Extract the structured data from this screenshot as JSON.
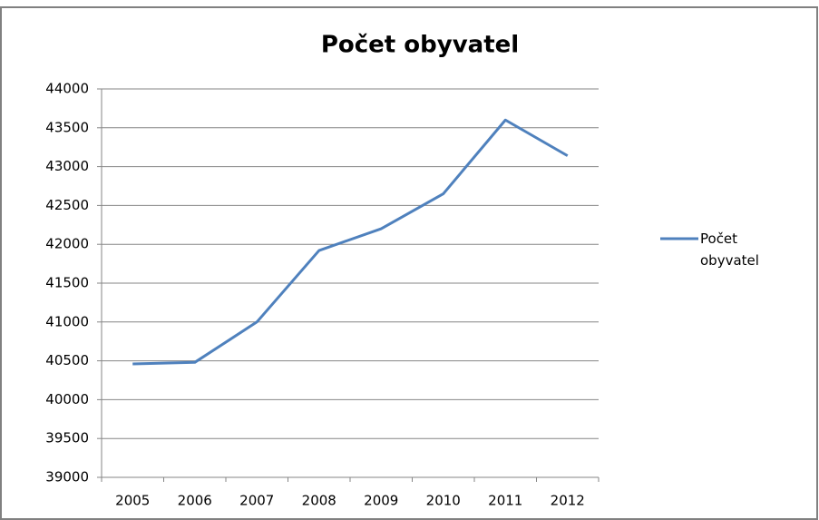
{
  "chart_data": {
    "type": "line",
    "title": "Počet obyvatel",
    "categories": [
      "2005",
      "2006",
      "2007",
      "2008",
      "2009",
      "2010",
      "2011",
      "2012"
    ],
    "series": [
      {
        "name": "Počet obyvatel",
        "color": "#4f81bd",
        "values": [
          40460,
          40480,
          41000,
          41920,
          42200,
          42650,
          43600,
          43140
        ]
      }
    ],
    "ylim": [
      39000,
      44000
    ],
    "yticks": [
      39000,
      39500,
      40000,
      40500,
      41000,
      41500,
      42000,
      42500,
      43000,
      43500,
      44000
    ],
    "grid": true,
    "legend": "right"
  }
}
